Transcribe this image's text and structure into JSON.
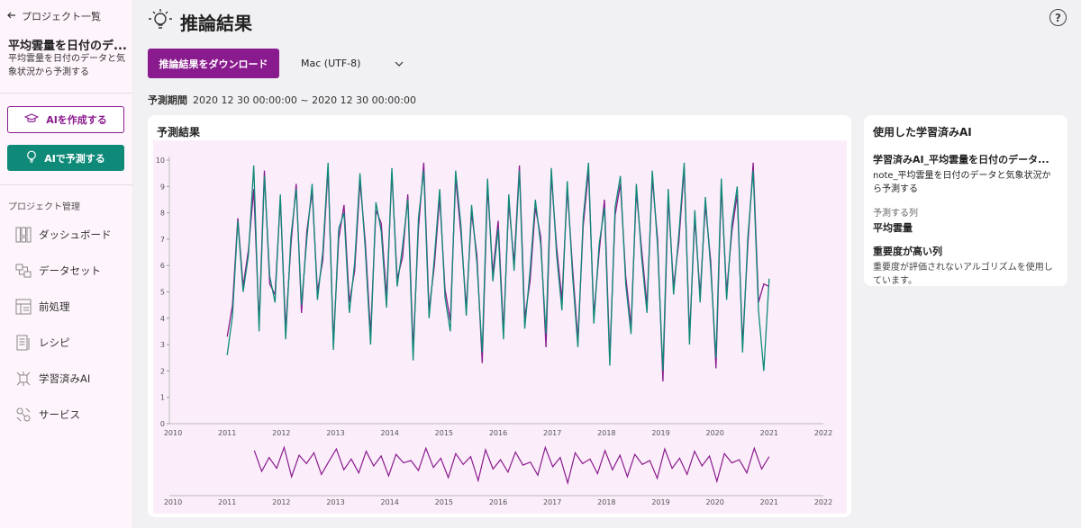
{
  "sidebar": {
    "back_label": "プロジェクト一覧",
    "project_title": "平均雲量を日付のデ...",
    "project_desc": "平均雲量を日付のデータと気象状況から予測する",
    "create_ai_label": "AIを作成する",
    "predict_ai_label": "AIで予測する",
    "section_label": "プロジェクト管理",
    "items": [
      {
        "label": "ダッシュボード",
        "icon": "dashboard-icon"
      },
      {
        "label": "データセット",
        "icon": "dataset-icon"
      },
      {
        "label": "前処理",
        "icon": "preprocess-icon"
      },
      {
        "label": "レシピ",
        "icon": "recipe-icon"
      },
      {
        "label": "学習済みAI",
        "icon": "trained-ai-icon"
      },
      {
        "label": "サービス",
        "icon": "service-icon"
      }
    ]
  },
  "header": {
    "title": "推論結果",
    "help": "?"
  },
  "toolbar": {
    "download_label": "推論結果をダウンロード",
    "encoding_value": "Mac (UTF-8)"
  },
  "period": {
    "label": "予測期間",
    "value": "2020 12 30 00:00:00 ~ 2020 12 30 00:00:00"
  },
  "chart_card": {
    "title": "予測結果"
  },
  "ai_card": {
    "title": "使用した学習済みAI",
    "ai_name": "学習済みAI_平均雲量を日付のデータ...",
    "ai_file": "note_平均雲量を日付のデータと気象状況から予測する",
    "target_label": "予測する列",
    "target_value": "平均雲量",
    "importance_title": "重要度が高い列",
    "importance_note": "重要度が評価されないアルゴリズムを使用しています。"
  },
  "colors": {
    "accent": "#8a1b8e",
    "teal": "#0f8a78",
    "chart_bg": "#fbeefa"
  },
  "chart_data": {
    "type": "line",
    "x_ticks": [
      "2010",
      "2011",
      "2012",
      "2013",
      "2014",
      "2015",
      "2016",
      "2017",
      "2018",
      "2019",
      "2020",
      "2021",
      "2022"
    ],
    "y_ticks": [
      "0",
      "1",
      "2",
      "3",
      "4",
      "5",
      "6",
      "7",
      "8",
      "9",
      "10"
    ],
    "xlim": [
      2010,
      2022
    ],
    "ylim": [
      0,
      10
    ],
    "series": [
      {
        "values": [
          3.3,
          4.5,
          7.8,
          5.2,
          6.6,
          8.9,
          3.8,
          9.6,
          5.3,
          4.9,
          8.5,
          3.6,
          6.8,
          9.1,
          4.2,
          7.3,
          8.8,
          5.0,
          6.2,
          9.7,
          3.1,
          7.0,
          8.3,
          4.6,
          5.8,
          9.2,
          6.9,
          3.4,
          8.1,
          7.6,
          4.8,
          9.5,
          5.5,
          6.3,
          8.7,
          2.8,
          7.4,
          9.9,
          4.3,
          6.0,
          8.6,
          5.1,
          3.9,
          9.3,
          7.2,
          4.4,
          8.0,
          6.4,
          2.3,
          9.0,
          5.7,
          7.7,
          3.5,
          8.4,
          6.1,
          9.8,
          4.0,
          5.4,
          8.2,
          7.1,
          2.9,
          9.4,
          6.7,
          4.7,
          8.9,
          5.9,
          3.2,
          7.5,
          9.6,
          4.1,
          6.5,
          8.5,
          2.5,
          7.9,
          9.1,
          5.6,
          3.7,
          8.8,
          6.6,
          4.5,
          9.3,
          7.0,
          1.6,
          8.6,
          5.2,
          6.9,
          9.7,
          3.3,
          7.8,
          4.9,
          8.3,
          6.2,
          2.1,
          9.0,
          5.0,
          7.3,
          8.7,
          3.0,
          6.8,
          9.9,
          4.6,
          5.3,
          5.2
        ]
      },
      {
        "values": [
          2.6,
          4.1,
          7.7,
          5.0,
          6.4,
          9.8,
          3.5,
          9.4,
          5.6,
          4.6,
          8.7,
          3.2,
          7.1,
          8.9,
          4.5,
          7.0,
          9.1,
          4.7,
          6.5,
          9.9,
          2.8,
          7.4,
          8.0,
          4.2,
          6.1,
          9.5,
          6.6,
          3.0,
          8.4,
          7.3,
          4.4,
          9.7,
          5.2,
          6.7,
          8.5,
          2.4,
          7.8,
          9.6,
          4.0,
          6.3,
          8.9,
          4.8,
          3.5,
          9.6,
          7.5,
          4.1,
          8.3,
          6.1,
          2.7,
          9.3,
          5.4,
          7.4,
          3.2,
          8.7,
          5.8,
          9.6,
          3.6,
          5.8,
          8.5,
          6.8,
          3.4,
          9.7,
          6.4,
          4.3,
          9.2,
          5.6,
          2.9,
          7.8,
          9.9,
          3.8,
          6.8,
          8.2,
          2.2,
          8.2,
          9.4,
          5.3,
          3.4,
          9.1,
          6.3,
          4.2,
          9.6,
          6.7,
          2.0,
          8.9,
          4.9,
          7.2,
          9.9,
          3.0,
          8.1,
          4.6,
          8.6,
          5.9,
          2.5,
          9.3,
          4.7,
          7.6,
          9.0,
          2.7,
          7.1,
          9.6,
          4.3,
          2.0,
          5.5
        ]
      }
    ],
    "overview_series": [
      {
        "values": [
          7.5,
          4.8,
          6.6,
          5.2,
          7.9,
          4.1,
          6.9,
          5.8,
          7.2,
          4.4,
          6.1,
          7.7,
          5.0,
          6.4,
          4.6,
          7.4,
          5.5,
          6.8,
          4.2,
          7.0,
          5.9,
          6.2,
          4.9,
          7.8,
          5.3,
          6.5,
          4.0,
          7.1,
          5.7,
          6.7,
          3.6,
          7.6,
          5.1,
          6.3,
          4.7,
          7.3,
          5.6,
          6.0,
          4.3,
          7.9,
          5.4,
          6.6,
          3.3,
          7.2,
          5.8,
          6.4,
          4.5,
          7.5,
          5.0,
          6.9,
          4.1,
          7.0,
          5.7,
          6.2,
          3.9,
          7.7,
          5.2,
          6.5,
          4.4,
          7.4,
          5.5,
          6.8,
          3.5,
          7.1,
          5.9,
          6.3,
          4.6,
          7.8,
          5.1,
          6.7
        ]
      }
    ]
  }
}
